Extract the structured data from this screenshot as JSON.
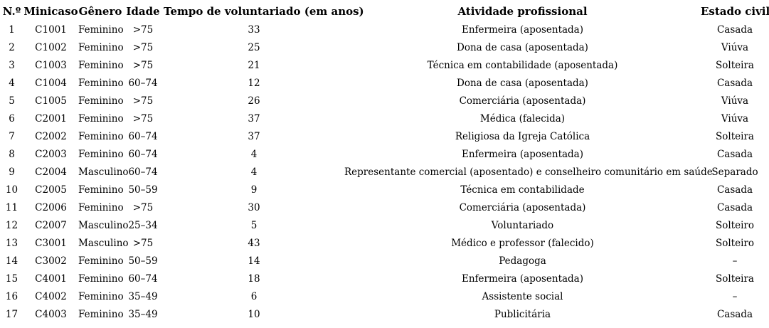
{
  "table": {
    "columns": [
      "N.º",
      "Minicaso",
      "Gênero",
      "Idade",
      "Tempo de voluntariado (em anos)",
      "Atividade profissional",
      "Estado civil"
    ],
    "rows": [
      [
        "1",
        "C1001",
        "Feminino",
        ">75",
        "33",
        "Enfermeira (aposentada)",
        "Casada"
      ],
      [
        "2",
        "C1002",
        "Feminino",
        ">75",
        "25",
        "Dona de casa (aposentada)",
        "Viúva"
      ],
      [
        "3",
        "C1003",
        "Feminino",
        ">75",
        "21",
        "Técnica em contabilidade (aposentada)",
        "Solteira"
      ],
      [
        "4",
        "C1004",
        "Feminino",
        "60–74",
        "12",
        "Dona de casa (aposentada)",
        "Casada"
      ],
      [
        "5",
        "C1005",
        "Feminino",
        ">75",
        "26",
        "Comerciária (aposentada)",
        "Viúva"
      ],
      [
        "6",
        "C2001",
        "Feminino",
        ">75",
        "37",
        "Médica (falecida)",
        "Viúva"
      ],
      [
        "7",
        "C2002",
        "Feminino",
        "60–74",
        "37",
        "Religiosa da Igreja Católica",
        "Solteira"
      ],
      [
        "8",
        "C2003",
        "Feminino",
        "60–74",
        "4",
        "Enfermeira (aposentada)",
        "Casada"
      ],
      [
        "9",
        "C2004",
        "Masculino",
        "60–74",
        "4",
        "Representante comercial (aposentado) e conselheiro comunitário em saúde",
        "Separado"
      ],
      [
        "10",
        "C2005",
        "Feminino",
        "50–59",
        "9",
        "Técnica em contabilidade",
        "Casada"
      ],
      [
        "11",
        "C2006",
        "Feminino",
        ">75",
        "30",
        "Comerciária (aposentada)",
        "Casada"
      ],
      [
        "12",
        "C2007",
        "Masculino",
        "25–34",
        "5",
        "Voluntariado",
        "Solteiro"
      ],
      [
        "13",
        "C3001",
        "Masculino",
        ">75",
        "43",
        "Médico e professor (falecido)",
        "Solteiro"
      ],
      [
        "14",
        "C3002",
        "Feminino",
        "50–59",
        "14",
        "Pedagoga",
        "–"
      ],
      [
        "15",
        "C4001",
        "Feminino",
        "60–74",
        "18",
        "Enfermeira (aposentada)",
        "Solteira"
      ],
      [
        "16",
        "C4002",
        "Feminino",
        "35–49",
        "6",
        "Assistente social",
        "–"
      ],
      [
        "17",
        "C4003",
        "Feminino",
        "35–49",
        "10",
        "Publicitária",
        "Casada"
      ]
    ]
  }
}
